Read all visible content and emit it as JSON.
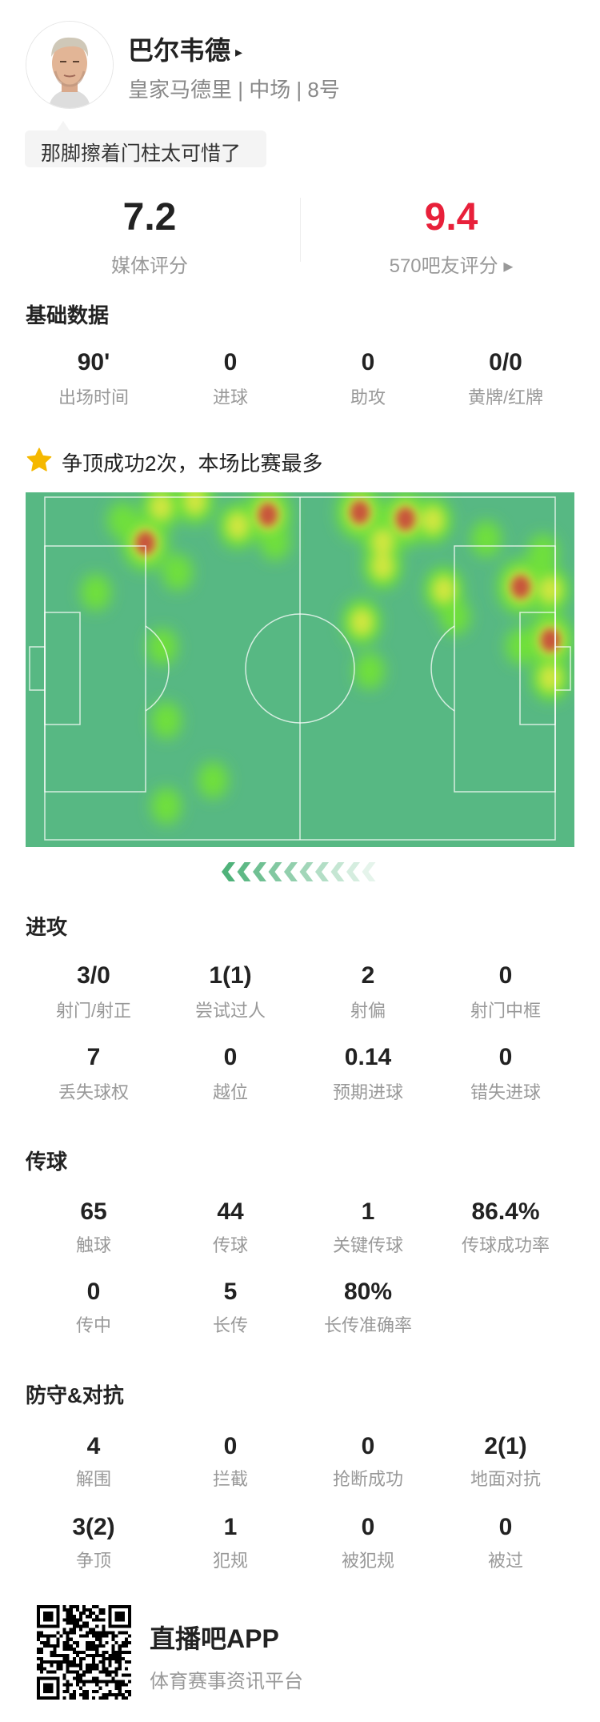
{
  "player": {
    "name": "巴尔韦德",
    "name_arrow": "▸",
    "subtitle": "皇家马德里 | 中场 | 8号",
    "comment": "那脚擦着门柱太可惜了"
  },
  "ratings": {
    "media_value": "7.2",
    "media_label": "媒体评分",
    "fan_value": "9.4",
    "fan_label": "570吧友评分 ▸",
    "fan_color": "#e8203a"
  },
  "basic": {
    "title": "基础数据",
    "items": [
      {
        "value": "90'",
        "label": "出场时间"
      },
      {
        "value": "0",
        "label": "进球"
      },
      {
        "value": "0",
        "label": "助攻"
      },
      {
        "value": "0/0",
        "label": "黄牌/红牌"
      }
    ]
  },
  "highlight": {
    "icon": "star-icon",
    "text": "争顶成功2次，本场比赛最多",
    "color": "#f5b800"
  },
  "heatmap": {
    "pitch_color": "#57b883",
    "points_m": [
      [
        45.9,
        3.5,
        3
      ],
      [
        64.8,
        3.0,
        3
      ],
      [
        74.2,
        4.3,
        3
      ],
      [
        20.7,
        9.1,
        3
      ],
      [
        23.9,
        1.9,
        2
      ],
      [
        16.0,
        4.6,
        1
      ],
      [
        30.9,
        0.8,
        2
      ],
      [
        39.7,
        5.7,
        2
      ],
      [
        47.4,
        8.9,
        1
      ],
      [
        69.5,
        8.9,
        2
      ],
      [
        69.5,
        13.7,
        2
      ],
      [
        79.8,
        4.6,
        2
      ],
      [
        90.8,
        8.3,
        1
      ],
      [
        102.5,
        11.0,
        1
      ],
      [
        97.9,
        17.8,
        3
      ],
      [
        104,
        18.4,
        2
      ],
      [
        82.1,
        18.4,
        2
      ],
      [
        84.4,
        23.7,
        1
      ],
      [
        27.3,
        14.9,
        1
      ],
      [
        10.5,
        18.9,
        1
      ],
      [
        65.2,
        24.8,
        2
      ],
      [
        24.2,
        29.7,
        1
      ],
      [
        104,
        28.4,
        3
      ],
      [
        104,
        35.9,
        2
      ],
      [
        97.9,
        29.6,
        1
      ],
      [
        66.8,
        34.5,
        1
      ],
      [
        25.0,
        44.3,
        1
      ],
      [
        34.6,
        56.2,
        1
      ],
      [
        25.0,
        61.3,
        1
      ]
    ]
  },
  "attack": {
    "title": "进攻",
    "items": [
      {
        "value": "3/0",
        "label": "射门/射正"
      },
      {
        "value": "1(1)",
        "label": "尝试过人"
      },
      {
        "value": "2",
        "label": "射偏"
      },
      {
        "value": "0",
        "label": "射门中框"
      },
      {
        "value": "7",
        "label": "丢失球权"
      },
      {
        "value": "0",
        "label": "越位"
      },
      {
        "value": "0.14",
        "label": "预期进球"
      },
      {
        "value": "0",
        "label": "错失进球"
      }
    ]
  },
  "passing": {
    "title": "传球",
    "items": [
      {
        "value": "65",
        "label": "触球"
      },
      {
        "value": "44",
        "label": "传球"
      },
      {
        "value": "1",
        "label": "关键传球"
      },
      {
        "value": "86.4%",
        "label": "传球成功率"
      },
      {
        "value": "0",
        "label": "传中"
      },
      {
        "value": "5",
        "label": "长传"
      },
      {
        "value": "80%",
        "label": "长传准确率"
      }
    ]
  },
  "defense": {
    "title": "防守&对抗",
    "items": [
      {
        "value": "4",
        "label": "解围"
      },
      {
        "value": "0",
        "label": "拦截"
      },
      {
        "value": "0",
        "label": "抢断成功"
      },
      {
        "value": "2(1)",
        "label": "地面对抗"
      },
      {
        "value": "3(2)",
        "label": "争顶"
      },
      {
        "value": "1",
        "label": "犯规"
      },
      {
        "value": "0",
        "label": "被犯规"
      },
      {
        "value": "0",
        "label": "被过"
      }
    ]
  },
  "footer": {
    "app_name": "直播吧APP",
    "app_tagline": "体育赛事资讯平台"
  }
}
